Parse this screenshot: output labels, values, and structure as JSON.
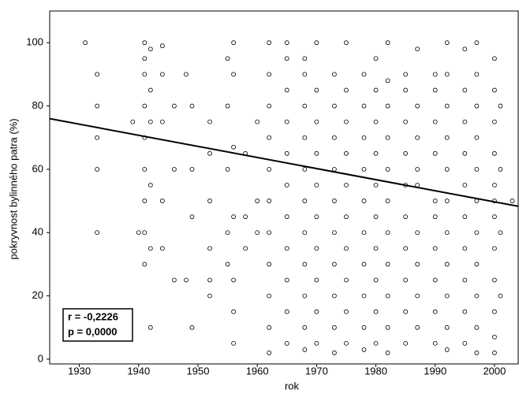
{
  "chart_data": {
    "type": "scatter",
    "x_label": "rok",
    "y_label": "pokryvnost bylinného patra (%)",
    "xlim": [
      1925,
      2004
    ],
    "ylim": [
      -1.5,
      110
    ],
    "xticks": [
      1930,
      1940,
      1950,
      1960,
      1970,
      1980,
      1990,
      2000
    ],
    "yticks": [
      0,
      20,
      40,
      60,
      80,
      100
    ],
    "marker_color": "#000000",
    "series": [
      {
        "x": [
          1931,
          1933,
          1933,
          1933,
          1933,
          1933,
          1939,
          1940,
          1941,
          1941,
          1941,
          1941,
          1941,
          1941,
          1941,
          1941,
          1941,
          1942,
          1942,
          1942,
          1942,
          1942,
          1942,
          1944,
          1944,
          1944,
          1944,
          1944,
          1946,
          1946,
          1946,
          1948,
          1948,
          1949,
          1949,
          1949,
          1949,
          1952,
          1952,
          1952,
          1952,
          1952,
          1952,
          1955,
          1955,
          1955,
          1955,
          1955,
          1956,
          1956,
          1956,
          1956,
          1956,
          1956,
          1956,
          1958,
          1958,
          1958,
          1960,
          1960,
          1960,
          1962,
          1962,
          1962,
          1962,
          1962,
          1962,
          1962,
          1962,
          1962,
          1962,
          1962,
          1965,
          1965,
          1965,
          1965,
          1965,
          1965,
          1965,
          1965,
          1965,
          1965,
          1965,
          1968,
          1968,
          1968,
          1968,
          1968,
          1968,
          1968,
          1968,
          1968,
          1968,
          1968,
          1970,
          1970,
          1970,
          1970,
          1970,
          1970,
          1970,
          1970,
          1970,
          1970,
          1973,
          1973,
          1973,
          1973,
          1973,
          1973,
          1973,
          1973,
          1973,
          1973,
          1975,
          1975,
          1975,
          1975,
          1975,
          1975,
          1975,
          1975,
          1975,
          1975,
          1978,
          1978,
          1978,
          1978,
          1978,
          1978,
          1978,
          1978,
          1978,
          1978,
          1980,
          1980,
          1980,
          1980,
          1980,
          1980,
          1980,
          1980,
          1980,
          1980,
          1982,
          1982,
          1982,
          1982,
          1982,
          1982,
          1982,
          1982,
          1982,
          1982,
          1982,
          1985,
          1985,
          1985,
          1985,
          1985,
          1985,
          1985,
          1985,
          1985,
          1985,
          1987,
          1987,
          1987,
          1987,
          1987,
          1987,
          1987,
          1987,
          1987,
          1990,
          1990,
          1990,
          1990,
          1990,
          1990,
          1990,
          1990,
          1990,
          1990,
          1992,
          1992,
          1992,
          1992,
          1992,
          1992,
          1992,
          1992,
          1992,
          1992,
          1992,
          1995,
          1995,
          1995,
          1995,
          1995,
          1995,
          1995,
          1995,
          1995,
          1995,
          1997,
          1997,
          1997,
          1997,
          1997,
          1997,
          1997,
          1997,
          1997,
          1997,
          1997,
          2000,
          2000,
          2000,
          2000,
          2000,
          2000,
          2000,
          2000,
          2000,
          2000,
          2000,
          2000,
          2001,
          2001,
          2001,
          2001,
          2003
        ],
        "values": [
          100,
          90,
          80,
          70,
          60,
          40,
          75,
          40,
          100,
          95,
          90,
          80,
          70,
          60,
          50,
          40,
          30,
          98,
          85,
          75,
          55,
          35,
          10,
          99,
          90,
          75,
          50,
          35,
          80,
          60,
          25,
          90,
          25,
          80,
          60,
          45,
          10,
          75,
          65,
          50,
          35,
          25,
          20,
          95,
          80,
          60,
          40,
          30,
          100,
          90,
          67,
          45,
          25,
          15,
          5,
          65,
          45,
          35,
          75,
          50,
          40,
          100,
          90,
          80,
          70,
          60,
          50,
          40,
          30,
          20,
          10,
          2,
          100,
          95,
          85,
          75,
          65,
          55,
          45,
          35,
          25,
          15,
          5,
          95,
          90,
          80,
          70,
          60,
          50,
          40,
          30,
          20,
          10,
          3,
          100,
          85,
          75,
          65,
          55,
          45,
          35,
          25,
          15,
          5,
          90,
          80,
          70,
          60,
          50,
          40,
          30,
          20,
          10,
          2,
          100,
          85,
          75,
          65,
          55,
          45,
          35,
          25,
          15,
          5,
          90,
          80,
          70,
          60,
          50,
          40,
          30,
          20,
          10,
          3,
          95,
          85,
          75,
          65,
          55,
          45,
          35,
          25,
          15,
          5,
          100,
          88,
          80,
          70,
          60,
          50,
          40,
          30,
          20,
          10,
          2,
          90,
          85,
          75,
          65,
          55,
          45,
          35,
          25,
          15,
          5,
          98,
          80,
          70,
          60,
          55,
          40,
          30,
          20,
          10,
          90,
          85,
          75,
          65,
          50,
          45,
          35,
          25,
          15,
          5,
          100,
          90,
          80,
          70,
          60,
          50,
          40,
          30,
          20,
          10,
          3,
          98,
          85,
          75,
          65,
          55,
          45,
          35,
          25,
          15,
          5,
          100,
          90,
          80,
          70,
          60,
          50,
          40,
          30,
          20,
          10,
          2,
          95,
          85,
          75,
          65,
          55,
          50,
          45,
          35,
          25,
          15,
          7,
          2,
          80,
          60,
          40,
          20,
          50
        ]
      }
    ],
    "fit_line": {
      "x": [
        1925,
        2004
      ],
      "y": [
        76,
        48.3
      ],
      "color": "#000000"
    },
    "annotations": [
      "r = -0,2226",
      "p = 0,0000"
    ]
  }
}
